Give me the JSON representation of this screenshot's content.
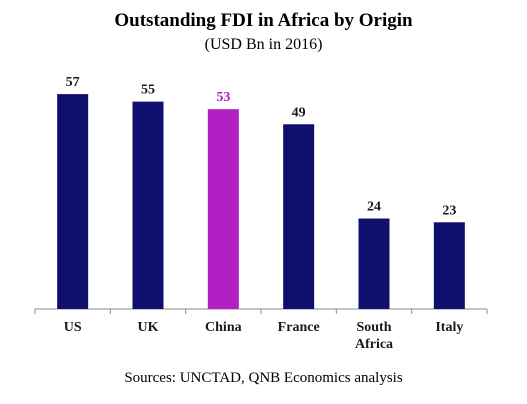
{
  "title": "Outstanding FDI in Africa by Origin",
  "subtitle": "(USD Bn in 2016)",
  "source": "Sources: UNCTAD, QNB Economics analysis",
  "colors": {
    "default_bar": "#0f0f6e",
    "highlight_bar": "#b21fc4",
    "axis": "#8c8c8c"
  },
  "chart_data": {
    "type": "bar",
    "categories": [
      "US",
      "UK",
      "China",
      "France",
      "South Africa",
      "Italy"
    ],
    "category_lines": [
      [
        "US"
      ],
      [
        "UK"
      ],
      [
        "China"
      ],
      [
        "France"
      ],
      [
        "South",
        "Africa"
      ],
      [
        "Italy"
      ]
    ],
    "values": [
      57,
      55,
      53,
      49,
      24,
      23
    ],
    "data_labels": [
      "57",
      "55",
      "53",
      "49",
      "24",
      "23"
    ],
    "highlight": [
      "China"
    ],
    "title": "Outstanding FDI in Africa by Origin",
    "subtitle": "(USD Bn in 2016)",
    "xlabel": "",
    "ylabel": "",
    "ylim": [
      0,
      70
    ],
    "grid": false,
    "legend": "none"
  }
}
